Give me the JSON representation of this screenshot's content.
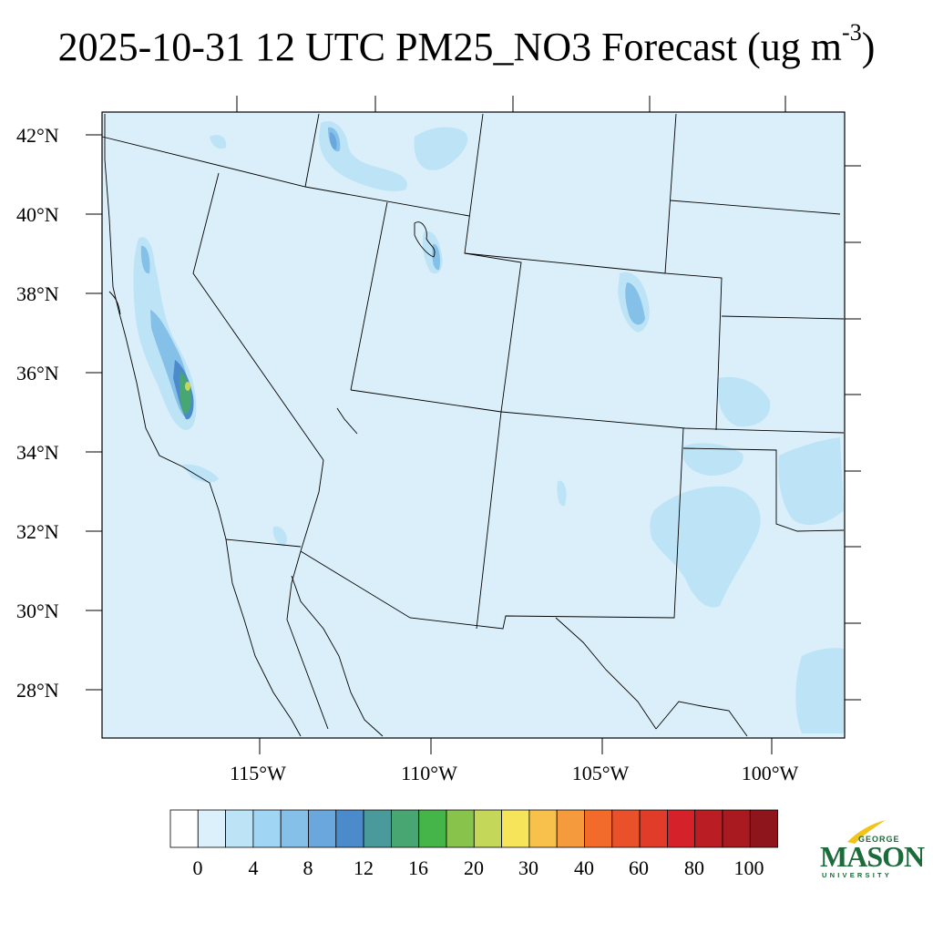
{
  "title": {
    "text": "2025-10-31 12 UTC PM25_NO3 Forecast (ug m",
    "superscript": "-3",
    "close": ")"
  },
  "map": {
    "projection": "lambert-conformal",
    "extent": {
      "lon_min": -120,
      "lon_max": -98,
      "lat_min": 27,
      "lat_max": 42.5
    },
    "lat_ticks": [
      "42°N",
      "40°N",
      "38°N",
      "36°N",
      "34°N",
      "32°N",
      "30°N",
      "28°N"
    ],
    "lon_ticks": [
      "115°W",
      "110°W",
      "105°W",
      "100°W"
    ],
    "background_color": "#dbeffa"
  },
  "colorbar": {
    "levels": [
      "0",
      "4",
      "8",
      "12",
      "16",
      "20",
      "30",
      "40",
      "60",
      "80",
      "100"
    ],
    "colors": [
      "#ffffff",
      "#dcf0fb",
      "#bde3f6",
      "#a0d5f3",
      "#84c0e8",
      "#69a7dc",
      "#4b8bcb",
      "#4a9a9b",
      "#48a673",
      "#45b54a",
      "#88c44c",
      "#c4d759",
      "#f6e45b",
      "#f7c14c",
      "#f69a3e",
      "#f36b2b",
      "#e9512a",
      "#e13c29",
      "#d4212a",
      "#bb1d24",
      "#a81920",
      "#8d151b"
    ]
  },
  "logo": {
    "line1": "GEORGE",
    "line2": "MASON",
    "line3": "UNIVERSITY"
  }
}
